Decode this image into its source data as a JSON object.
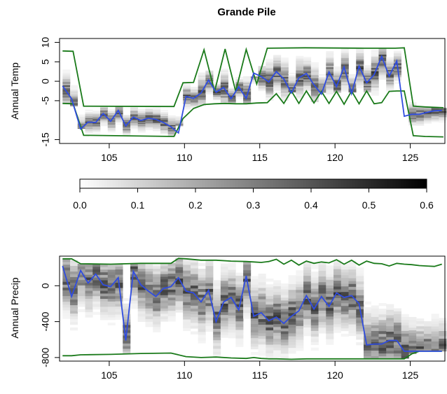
{
  "title": "Grande Pile",
  "colors": {
    "envelope": "#1a7a1a",
    "mean": "#2f4ce0",
    "heat_low": "#ffffff",
    "heat_high": "#000000"
  },
  "chart_data": [
    {
      "type": "line",
      "title": "Grande Pile",
      "xlabel": "",
      "ylabel": "Annual Temp",
      "xlim": [
        101.7,
        127.3
      ],
      "ylim": [
        -16,
        11
      ],
      "x_ticks": [
        105,
        110,
        115,
        120,
        125
      ],
      "y_ticks": [
        -15,
        -5,
        0,
        5,
        10
      ],
      "background": "heatmap",
      "series": [
        {
          "role": "mean",
          "x": [
            101.9,
            102.5,
            103.1,
            103.6,
            104.1,
            104.6,
            105.1,
            105.6,
            106.1,
            106.6,
            107.1,
            107.6,
            108.1,
            108.6,
            109.1,
            109.6,
            110.1,
            110.6,
            111.1,
            111.6,
            112.1,
            112.6,
            113.1,
            113.6,
            114.1,
            114.6,
            115.1,
            115.6,
            116.1,
            116.6,
            117.1,
            117.6,
            118.1,
            118.6,
            119.1,
            119.6,
            120.1,
            120.6,
            121.1,
            121.6,
            122.1,
            122.6,
            123.1,
            123.6,
            124.1,
            124.6,
            125.1,
            125.6,
            126.1,
            126.6,
            127.1
          ],
          "y": [
            -1.2,
            -4.5,
            -12.3,
            -10.5,
            -10.6,
            -8.3,
            -10.3,
            -7.5,
            -11.5,
            -9.2,
            -10.1,
            -9.5,
            -9.8,
            -10.6,
            -11.7,
            -13.3,
            -3.9,
            -4.4,
            -3.0,
            0.3,
            -2.8,
            -1.6,
            -4.5,
            -1.4,
            -4.4,
            2.1,
            1.2,
            -0.2,
            2.5,
            0.6,
            -3.0,
            0.9,
            2.0,
            -0.9,
            -3.3,
            2.4,
            -1.4,
            3.7,
            -3.2,
            3.9,
            -0.4,
            1.7,
            6.4,
            1.3,
            5.2,
            -9.0,
            -8.5,
            -8.5,
            -8.0,
            -7.6,
            -7.5
          ]
        },
        {
          "role": "upper",
          "x": [
            101.9,
            102.6,
            103.3,
            109.3,
            109.9,
            110.6,
            111.3,
            112.0,
            112.7,
            113.4,
            114.1,
            114.8,
            115.5,
            118.0,
            122.0,
            124.0,
            124.6,
            125.2,
            126.0,
            127.2
          ],
          "y": [
            7.8,
            7.7,
            -6.4,
            -6.5,
            -0.4,
            -0.3,
            8.1,
            -2.6,
            8.3,
            -2.6,
            8.2,
            -0.7,
            8.5,
            8.6,
            8.5,
            8.5,
            8.6,
            -6.4,
            -6.6,
            -6.8
          ]
        },
        {
          "role": "lower",
          "x": [
            101.9,
            102.6,
            103.3,
            109.3,
            109.9,
            110.6,
            111.3,
            112.0,
            112.7,
            113.4,
            114.1,
            114.8,
            115.5,
            116.1,
            116.6,
            117.1,
            117.6,
            118.1,
            118.6,
            119.1,
            119.6,
            120.1,
            120.6,
            121.1,
            121.6,
            122.1,
            122.6,
            123.1,
            123.6,
            124.1,
            124.6,
            125.2,
            126.0,
            127.2
          ],
          "y": [
            -5.7,
            -5.8,
            -13.9,
            -14.2,
            -9.6,
            -7.0,
            -6.0,
            -5.8,
            -5.7,
            -5.8,
            -5.8,
            -5.6,
            -5.5,
            -3.2,
            -5.7,
            -2.5,
            -5.7,
            -2.5,
            -5.6,
            -2.6,
            -5.7,
            -2.6,
            -5.9,
            -2.5,
            -5.8,
            -2.5,
            -5.8,
            -5.5,
            -2.6,
            -2.5,
            -2.5,
            -14.0,
            -14.2,
            -14.3
          ]
        }
      ]
    },
    {
      "type": "line",
      "xlabel": "",
      "ylabel": "Annual Precip",
      "xlim": [
        101.7,
        127.3
      ],
      "ylim": [
        -840,
        330
      ],
      "x_ticks": [
        105,
        110,
        115,
        120,
        125
      ],
      "y_ticks": [
        -800,
        -400,
        0
      ],
      "background": "heatmap",
      "series": [
        {
          "role": "mean",
          "x": [
            101.9,
            102.5,
            103.1,
            103.6,
            104.1,
            104.6,
            105.1,
            105.6,
            106.1,
            106.6,
            107.1,
            107.6,
            108.1,
            108.6,
            109.1,
            109.6,
            110.1,
            110.6,
            111.1,
            111.6,
            112.1,
            112.6,
            113.1,
            113.6,
            114.1,
            114.6,
            115.1,
            115.6,
            116.1,
            116.6,
            117.1,
            117.6,
            118.1,
            118.6,
            119.1,
            119.6,
            120.1,
            120.6,
            121.1,
            121.6,
            122.1,
            122.6,
            123.1,
            123.6,
            124.1,
            124.6,
            125.1,
            125.6,
            126.1,
            126.6,
            127.1
          ],
          "y": [
            220,
            -120,
            170,
            30,
            130,
            10,
            -10,
            90,
            -610,
            160,
            10,
            -60,
            -120,
            -30,
            -10,
            90,
            -60,
            -80,
            -180,
            -50,
            -400,
            -180,
            -130,
            -270,
            110,
            -340,
            -300,
            -390,
            -350,
            -420,
            -340,
            -280,
            -110,
            -260,
            -120,
            -230,
            -80,
            -130,
            -110,
            -200,
            -660,
            -650,
            -650,
            -610,
            -610,
            -730,
            -730,
            -730,
            -730,
            -730,
            -730
          ]
        },
        {
          "role": "upper",
          "x": [
            101.9,
            102.5,
            103.1,
            105.1,
            107.1,
            109.1,
            109.6,
            110.1,
            111.1,
            112.1,
            113.1,
            114.1,
            114.6,
            115.1,
            115.6,
            116.1,
            116.6,
            117.1,
            117.6,
            118.1,
            118.6,
            119.1,
            119.6,
            120.1,
            120.6,
            121.1,
            121.6,
            122.1,
            122.6,
            123.1,
            123.6,
            124.1,
            124.6,
            125.1,
            125.6,
            126.1,
            126.6,
            127.1
          ],
          "y": [
            300,
            300,
            245,
            240,
            250,
            250,
            305,
            300,
            285,
            285,
            275,
            270,
            265,
            260,
            270,
            295,
            240,
            285,
            230,
            275,
            250,
            265,
            255,
            290,
            240,
            285,
            230,
            275,
            250,
            245,
            220,
            250,
            240,
            235,
            225,
            220,
            215,
            240
          ]
        },
        {
          "role": "lower",
          "x": [
            101.9,
            102.5,
            103.1,
            105.1,
            107.1,
            109.1,
            110.1,
            111.1,
            112.1,
            113.1,
            114.1,
            114.6,
            115.1,
            115.6,
            116.1,
            117.1,
            118.1,
            119.1,
            120.1,
            121.1,
            122.1,
            123.1,
            124.1,
            124.6,
            125.1,
            125.6,
            126.1,
            127.1
          ],
          "y": [
            -780,
            -780,
            -770,
            -765,
            -755,
            -750,
            -790,
            -800,
            -795,
            -805,
            -810,
            -800,
            -810,
            -815,
            -815,
            -820,
            -815,
            -815,
            -815,
            -815,
            -815,
            -815,
            -815,
            -815,
            -760,
            -730,
            -730,
            -730
          ]
        }
      ]
    },
    {
      "type": "colorbar",
      "range": [
        0,
        0.6
      ],
      "tick_labels": [
        "0.0",
        "0.1",
        "0.2",
        "0.3",
        "0.4",
        "0.5",
        "0.6"
      ]
    }
  ]
}
